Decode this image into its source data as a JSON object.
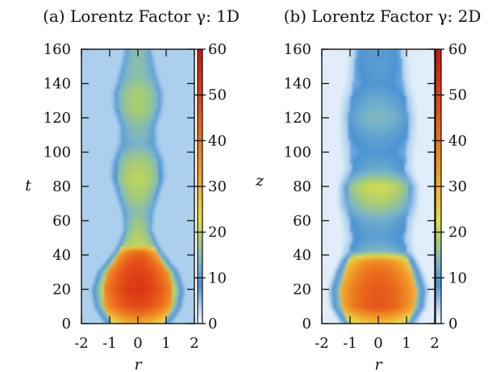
{
  "chart_data": [
    {
      "type": "heatmap",
      "title": "(a) Lorentz Factor γ: 1D",
      "xlabel": "r",
      "ylabel": "t",
      "xlim": [
        -2,
        2
      ],
      "ylim": [
        0,
        160
      ],
      "x_ticks": [
        "-2",
        "-1",
        "0",
        "1",
        "2"
      ],
      "y_ticks": [
        "0",
        "20",
        "40",
        "60",
        "80",
        "100",
        "120",
        "140",
        "160"
      ],
      "colorbar": {
        "min": 0,
        "max": 60,
        "ticks": [
          "0",
          "10",
          "20",
          "30",
          "40",
          "50",
          "60"
        ]
      },
      "background_value": 4,
      "jet_half_width_profile": [
        {
          "y": 0,
          "value": 0.9
        },
        {
          "y": 10,
          "value": 1.18
        },
        {
          "y": 20,
          "value": 1.25
        },
        {
          "y": 30,
          "value": 1.1
        },
        {
          "y": 42,
          "value": 0.65
        },
        {
          "y": 55,
          "value": 0.4
        },
        {
          "y": 65,
          "value": 0.45
        },
        {
          "y": 75,
          "value": 0.6
        },
        {
          "y": 85,
          "value": 0.75
        },
        {
          "y": 95,
          "value": 0.72
        },
        {
          "y": 105,
          "value": 0.55
        },
        {
          "y": 115,
          "value": 0.52
        },
        {
          "y": 125,
          "value": 0.68
        },
        {
          "y": 135,
          "value": 0.7
        },
        {
          "y": 145,
          "value": 0.55
        },
        {
          "y": 160,
          "value": 0.38
        }
      ],
      "jet_peak_value_profile": [
        {
          "y": 0,
          "value": 30
        },
        {
          "y": 10,
          "value": 48
        },
        {
          "y": 20,
          "value": 52
        },
        {
          "y": 30,
          "value": 50
        },
        {
          "y": 38,
          "value": 46
        },
        {
          "y": 42,
          "value": 42
        },
        {
          "y": 46,
          "value": 20
        },
        {
          "y": 55,
          "value": 18
        },
        {
          "y": 65,
          "value": 15
        },
        {
          "y": 75,
          "value": 18
        },
        {
          "y": 85,
          "value": 20
        },
        {
          "y": 95,
          "value": 18
        },
        {
          "y": 105,
          "value": 13
        },
        {
          "y": 115,
          "value": 15
        },
        {
          "y": 125,
          "value": 18
        },
        {
          "y": 135,
          "value": 18
        },
        {
          "y": 145,
          "value": 15
        },
        {
          "y": 160,
          "value": 15
        }
      ]
    },
    {
      "type": "heatmap",
      "title": "(b) Lorentz Factor γ: 2D",
      "xlabel": "r",
      "ylabel": "z",
      "xlim": [
        -2,
        2
      ],
      "ylim": [
        0,
        160
      ],
      "x_ticks": [
        "-2",
        "-1",
        "0",
        "1",
        "2"
      ],
      "y_ticks": [
        "0",
        "20",
        "40",
        "60",
        "80",
        "100",
        "120",
        "140",
        "160"
      ],
      "colorbar": {
        "min": 0,
        "max": 60,
        "ticks": [
          "0",
          "10",
          "20",
          "30",
          "40",
          "50",
          "60"
        ]
      },
      "background_value": 1,
      "jet_half_width_profile": [
        {
          "y": 0,
          "value": 1.05
        },
        {
          "y": 10,
          "value": 1.3
        },
        {
          "y": 20,
          "value": 1.35
        },
        {
          "y": 30,
          "value": 1.2
        },
        {
          "y": 40,
          "value": 1.0
        },
        {
          "y": 50,
          "value": 0.95
        },
        {
          "y": 60,
          "value": 1.0
        },
        {
          "y": 70,
          "value": 1.1
        },
        {
          "y": 80,
          "value": 1.1
        },
        {
          "y": 90,
          "value": 0.95
        },
        {
          "y": 100,
          "value": 1.0
        },
        {
          "y": 110,
          "value": 1.05
        },
        {
          "y": 120,
          "value": 1.05
        },
        {
          "y": 130,
          "value": 1.0
        },
        {
          "y": 140,
          "value": 0.9
        },
        {
          "y": 150,
          "value": 0.85
        },
        {
          "y": 160,
          "value": 0.8
        }
      ],
      "jet_peak_value_profile": [
        {
          "y": 0,
          "value": 26
        },
        {
          "y": 10,
          "value": 46
        },
        {
          "y": 20,
          "value": 45
        },
        {
          "y": 30,
          "value": 42
        },
        {
          "y": 37,
          "value": 36
        },
        {
          "y": 42,
          "value": 14
        },
        {
          "y": 50,
          "value": 10
        },
        {
          "y": 60,
          "value": 12
        },
        {
          "y": 70,
          "value": 18
        },
        {
          "y": 80,
          "value": 22
        },
        {
          "y": 90,
          "value": 12
        },
        {
          "y": 100,
          "value": 9
        },
        {
          "y": 110,
          "value": 11
        },
        {
          "y": 120,
          "value": 14
        },
        {
          "y": 130,
          "value": 12
        },
        {
          "y": 140,
          "value": 9
        },
        {
          "y": 150,
          "value": 10
        },
        {
          "y": 160,
          "value": 10
        }
      ]
    }
  ]
}
